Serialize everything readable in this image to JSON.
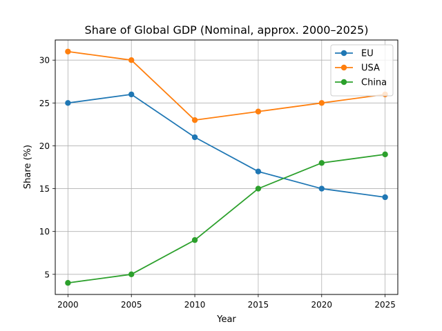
{
  "chart_data": {
    "type": "line",
    "title": "Share of Global GDP (Nominal, approx. 2000–2025)",
    "xlabel": "Year",
    "ylabel": "Share (%)",
    "x": [
      2000,
      2005,
      2010,
      2015,
      2020,
      2025
    ],
    "xticks": [
      2000,
      2005,
      2010,
      2015,
      2020,
      2025
    ],
    "yticks": [
      5,
      10,
      15,
      20,
      25,
      30
    ],
    "xlim": [
      1999,
      2026
    ],
    "ylim": [
      2.65,
      32.35
    ],
    "grid": true,
    "legend_position": "top-right",
    "series": [
      {
        "name": "EU",
        "color": "#1f77b4",
        "values": [
          25,
          26,
          21,
          17,
          15,
          14
        ]
      },
      {
        "name": "USA",
        "color": "#ff7f0e",
        "values": [
          31,
          30,
          23,
          24,
          25,
          26
        ]
      },
      {
        "name": "China",
        "color": "#2ca02c",
        "values": [
          4,
          5,
          9,
          15,
          18,
          19
        ]
      }
    ]
  }
}
